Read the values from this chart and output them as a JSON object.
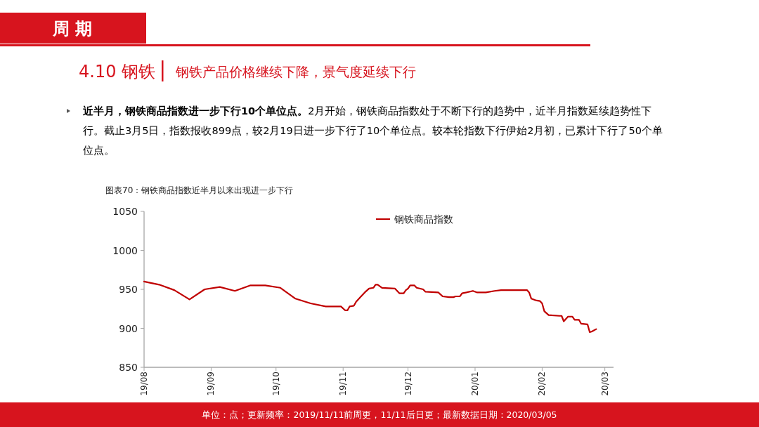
{
  "chart_data": {
    "type": "line",
    "title": "4.10 钢铁",
    "subtitle": "钢铁产品价格继续下降，景气度延续下行",
    "annotations": [
      "周期",
      "近半月，钢铁商品指数进一步下行10个单位点。",
      "2月开始，钢铁商品指数处于不断下行的趋势中，近半月指数延续趋势性下行。截止3月5日，指数报收899点，较2月19日进一步下行了10个单位点。较本轮指数下行伊始2月初，已累计下行了50个单位点。",
      "图表70：钢铁商品指数近半月以来出现进一步下行",
      "单位：点；更新频率：2019/11/11前周更，11/11后日更；最新数据日期：2020/03/05"
    ],
    "x": [
      "2019-08-01",
      "2019-08-08",
      "2019-08-15",
      "2019-08-22",
      "2019-08-29",
      "2019-09-05",
      "2019-09-12",
      "2019-09-19",
      "2019-09-26",
      "2019-10-03",
      "2019-10-10",
      "2019-10-17",
      "2019-10-24",
      "2019-10-31",
      "2019-11-02",
      "2019-11-03",
      "2019-11-04",
      "2019-11-06",
      "2019-11-07",
      "2019-11-09",
      "2019-11-11",
      "2019-11-13",
      "2019-11-15",
      "2019-11-16",
      "2019-11-17",
      "2019-11-19",
      "2019-11-25",
      "2019-11-27",
      "2019-11-29",
      "2019-11-30",
      "2019-12-01",
      "2019-12-02",
      "2019-12-04",
      "2019-12-05",
      "2019-12-08",
      "2019-12-09",
      "2019-12-15",
      "2019-12-17",
      "2019-12-20",
      "2019-12-22",
      "2019-12-23",
      "2019-12-25",
      "2019-12-26",
      "2019-12-28",
      "2019-12-31",
      "2020-01-02",
      "2020-01-06",
      "2020-01-10",
      "2020-01-13",
      "2020-01-25",
      "2020-01-26",
      "2020-01-27",
      "2020-01-29",
      "2020-01-31",
      "2020-02-01",
      "2020-02-02",
      "2020-02-04",
      "2020-02-09",
      "2020-02-10",
      "2020-02-11",
      "2020-02-13",
      "2020-02-15",
      "2020-02-16",
      "2020-02-18",
      "2020-02-19",
      "2020-02-22",
      "2020-02-23",
      "2020-02-24",
      "2020-02-26"
    ],
    "series": [
      {
        "name": "钢铁商品指数",
        "color": "#c00000",
        "values": [
          960,
          956,
          949,
          937,
          950,
          953,
          948,
          955,
          955,
          952,
          938,
          932,
          928,
          928,
          923,
          923,
          928,
          929,
          934,
          940,
          946,
          951,
          952,
          956,
          956,
          952,
          951,
          945,
          945,
          949,
          951,
          955,
          955,
          952,
          950,
          947,
          946,
          941,
          940,
          940,
          941,
          941,
          945,
          946,
          948,
          946,
          946,
          948,
          949,
          949,
          946,
          938,
          936,
          935,
          932,
          922,
          917,
          916,
          916,
          909,
          915,
          915,
          911,
          911,
          906,
          905,
          895,
          896,
          899
        ]
      }
    ],
    "xlim": [
      "2019-08-01",
      "2020-03-05"
    ],
    "ylim": [
      850,
      1050
    ],
    "xticks": [
      {
        "value": "2019-08-01",
        "label": "19/08"
      },
      {
        "value": "2019-09-01",
        "label": "19/09"
      },
      {
        "value": "2019-10-01",
        "label": "19/10"
      },
      {
        "value": "2019-11-01",
        "label": "19/11"
      },
      {
        "value": "2019-12-01",
        "label": "19/12"
      },
      {
        "value": "2020-01-01",
        "label": "20/01"
      },
      {
        "value": "2020-02-01",
        "label": "20/02"
      },
      {
        "value": "2020-03-01",
        "label": "20/03"
      }
    ],
    "yticks": [
      850,
      900,
      950,
      1000,
      1050
    ],
    "legend": "top",
    "line_style": "solid"
  }
}
